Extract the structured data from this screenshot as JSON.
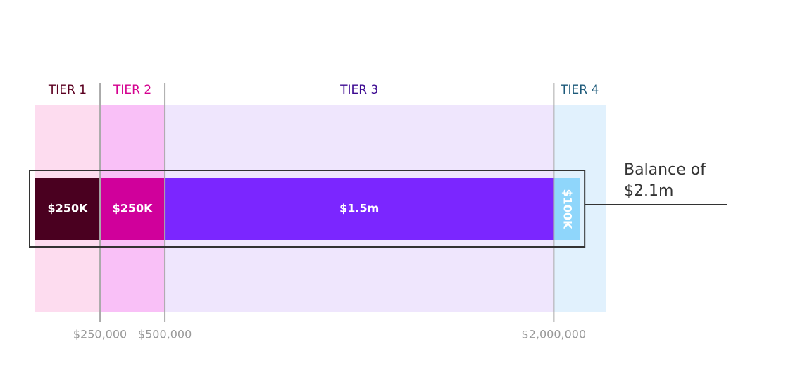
{
  "chart_data": {
    "type": "stacked-bar",
    "tiers": [
      {
        "name": "TIER 1",
        "color": "#5b0020",
        "band_color": "#fddcef"
      },
      {
        "name": "TIER 2",
        "color": "#d4008f",
        "band_color": "#f9c0f7"
      },
      {
        "name": "TIER 3",
        "color": "#3d0a91",
        "band_color": "#efe6fd"
      },
      {
        "name": "TIER 4",
        "color": "#1d5a7a",
        "band_color": "#e1f1fd"
      }
    ],
    "values": [
      250000,
      250000,
      1500000,
      100000
    ],
    "value_labels": [
      "$250K",
      "$250K",
      "$1.5m",
      "$100K"
    ],
    "colors": [
      "#4a0020",
      "#d0009b",
      "#7b26ff",
      "#8fd6fb"
    ],
    "xlim": [
      0,
      2200000
    ],
    "xticks": [
      {
        "value": 250000,
        "label": "$250,000"
      },
      {
        "value": 500000,
        "label": "$500,000"
      },
      {
        "value": 2000000,
        "label": "$2,000,000"
      }
    ],
    "annotation": [
      "Balance of",
      "$2.1m"
    ]
  }
}
